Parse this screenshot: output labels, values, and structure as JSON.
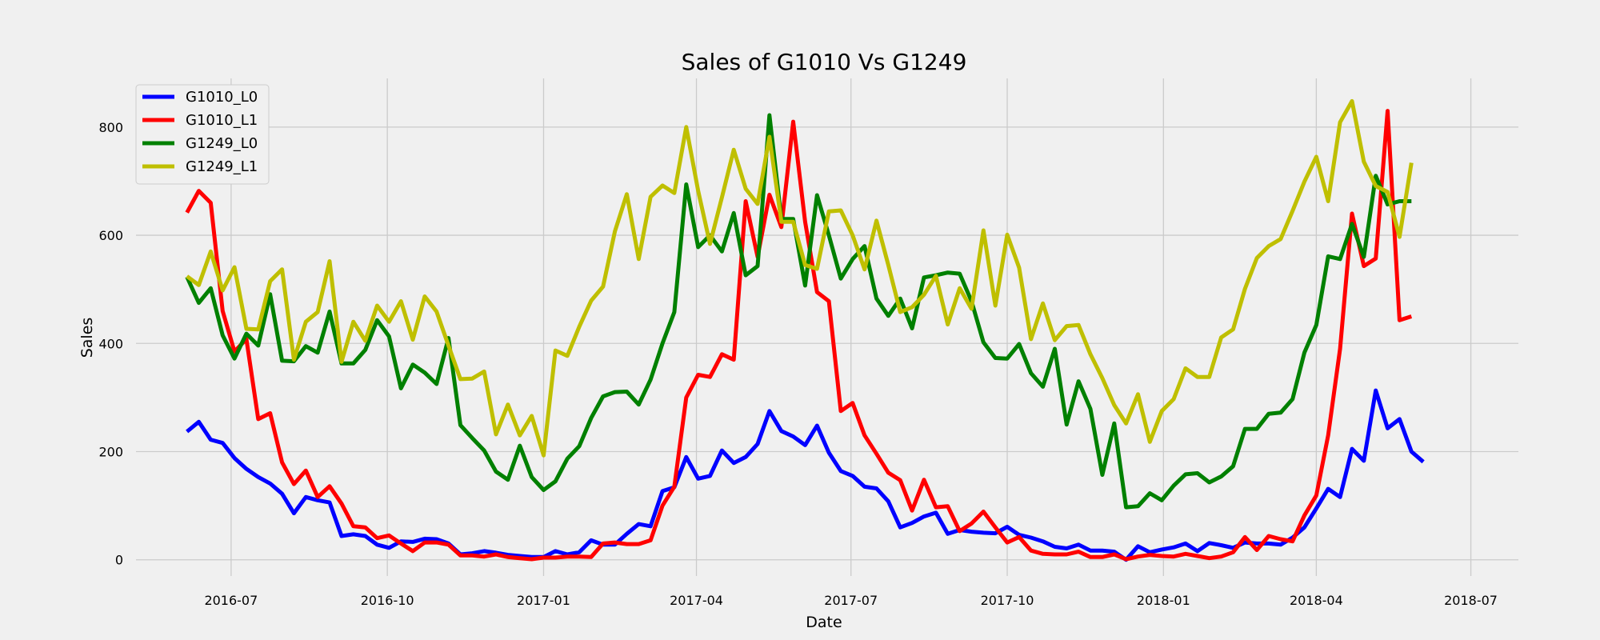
{
  "chart_data": {
    "type": "line",
    "title": "Sales of G1010 Vs G1249",
    "xlabel": "Date",
    "ylabel": "Sales",
    "xlim": [
      "2016-05-06",
      "2018-07-29"
    ],
    "ylim": [
      -30,
      890
    ],
    "grid": true,
    "legend_position": "top-left",
    "x_ticks": [
      "2016-07-01",
      "2016-10-01",
      "2017-01-01",
      "2017-04-01",
      "2017-07-01",
      "2017-10-01",
      "2018-01-01",
      "2018-04-01",
      "2018-07-01"
    ],
    "x_tick_labels": [
      "2016-07",
      "2016-10",
      "2017-01",
      "2017-04",
      "2017-07",
      "2017-10",
      "2018-01",
      "2018-04",
      "2018-07"
    ],
    "y_ticks": [
      0,
      200,
      400,
      600,
      800
    ],
    "y_tick_labels": [
      "0",
      "200",
      "400",
      "600",
      "800"
    ],
    "x_start": "2016-06-05",
    "x_step_days": 7,
    "series": [
      {
        "name": "G1010_L0",
        "color": "#0000ff",
        "values": [
          237,
          255,
          222,
          216,
          188,
          168,
          153,
          141,
          122,
          86,
          116,
          110,
          106,
          44,
          47,
          44,
          28,
          22,
          34,
          33,
          39,
          38,
          30,
          10,
          12,
          16,
          13,
          9,
          7,
          5,
          5,
          16,
          10,
          14,
          36,
          28,
          28,
          48,
          66,
          62,
          127,
          134,
          190,
          150,
          155,
          202,
          179,
          190,
          214,
          275,
          238,
          228,
          212,
          248,
          198,
          164,
          155,
          135,
          132,
          108,
          60,
          68,
          80,
          87,
          48,
          55,
          52,
          50,
          49,
          61,
          46,
          41,
          34,
          24,
          21,
          28,
          17,
          17,
          15,
          0,
          25,
          14,
          19,
          23,
          30,
          16,
          31,
          27,
          22,
          32,
          30,
          30,
          28,
          41,
          60,
          95,
          131,
          116,
          205,
          183,
          313,
          243,
          260,
          200,
          181
        ]
      },
      {
        "name": "G1010_L1",
        "color": "#ff0000",
        "values": [
          642,
          682,
          660,
          460,
          385,
          408,
          260,
          271,
          180,
          140,
          165,
          116,
          136,
          104,
          62,
          60,
          40,
          45,
          30,
          16,
          32,
          32,
          28,
          8,
          8,
          6,
          10,
          5,
          3,
          1,
          4,
          4,
          6,
          6,
          5,
          30,
          32,
          29,
          29,
          36,
          100,
          135,
          300,
          342,
          338,
          380,
          370,
          663,
          560,
          675,
          615,
          810,
          625,
          495,
          478,
          275,
          290,
          230,
          196,
          161,
          147,
          91,
          148,
          97,
          99,
          53,
          67,
          89,
          60,
          32,
          42,
          17,
          11,
          10,
          10,
          15,
          5,
          5,
          10,
          1,
          6,
          9,
          7,
          6,
          11,
          7,
          3,
          6,
          14,
          42,
          18,
          44,
          38,
          34,
          82,
          119,
          230,
          390,
          640,
          543,
          557,
          830,
          443,
          450
        ],
        "x_offset_weeks": 0
      },
      {
        "name": "G1249_L0",
        "color": "#008000",
        "values": [
          523,
          475,
          502,
          415,
          372,
          418,
          396,
          491,
          368,
          367,
          395,
          383,
          459,
          363,
          363,
          388,
          443,
          413,
          317,
          361,
          346,
          325,
          410,
          249,
          225,
          202,
          163,
          148,
          211,
          153,
          129,
          145,
          187,
          210,
          262,
          302,
          310,
          311,
          287,
          333,
          400,
          458,
          694,
          578,
          600,
          570,
          641,
          526,
          543,
          822,
          630,
          630,
          507,
          674,
          600,
          520,
          556,
          580,
          483,
          451,
          483,
          428,
          522,
          526,
          531,
          529,
          478,
          402,
          373,
          372,
          399,
          345,
          320,
          390,
          250,
          330,
          279,
          157,
          252,
          97,
          99,
          123,
          110,
          137,
          158,
          160,
          143,
          154,
          173,
          242,
          242,
          270,
          272,
          297,
          383,
          434,
          561,
          556,
          621,
          560,
          710,
          657,
          663,
          663
        ]
      },
      {
        "name": "G1249_L1",
        "color": "#bfbf00",
        "values": [
          524,
          508,
          570,
          498,
          541,
          427,
          426,
          515,
          537,
          370,
          440,
          458,
          552,
          366,
          440,
          405,
          470,
          440,
          478,
          407,
          487,
          459,
          396,
          334,
          335,
          348,
          232,
          287,
          230,
          266,
          193,
          387,
          377,
          431,
          479,
          505,
          607,
          676,
          556,
          671,
          692,
          678,
          800,
          682,
          584,
          670,
          758,
          686,
          658,
          782,
          625,
          625,
          545,
          538,
          644,
          646,
          600,
          537,
          627,
          545,
          458,
          467,
          490,
          525,
          435,
          502,
          464,
          609,
          470,
          601,
          540,
          408,
          474,
          406,
          432,
          434,
          380,
          336,
          286,
          252,
          306,
          218,
          275,
          297,
          354,
          338,
          338,
          411,
          426,
          501,
          558,
          580,
          593,
          645,
          699,
          745,
          663,
          809,
          848,
          736,
          691,
          680,
          597,
          734
        ]
      }
    ]
  }
}
